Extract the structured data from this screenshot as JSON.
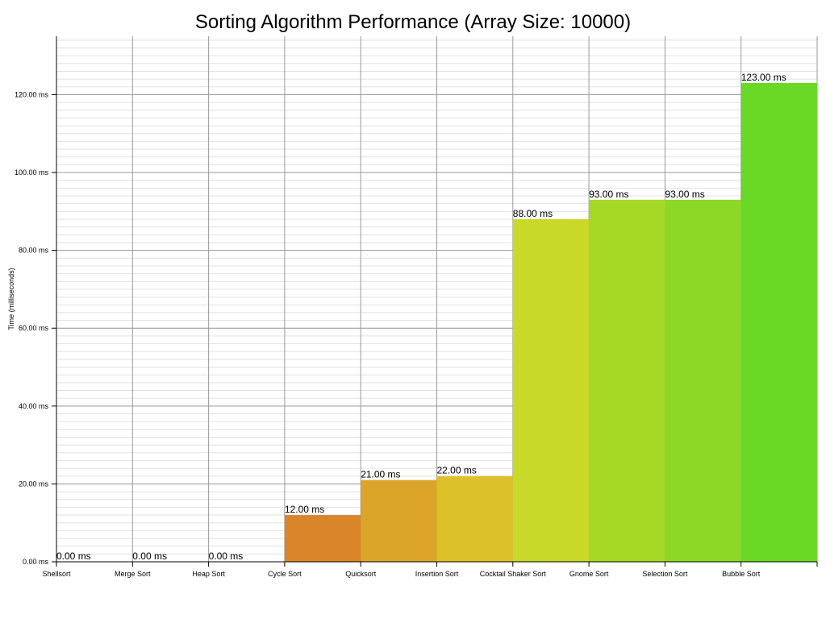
{
  "chart_data": {
    "type": "bar",
    "title": "Sorting Algorithm Performance (Array Size: 10000)",
    "xlabel": "",
    "ylabel": "Time (milliseconds)",
    "ylim": [
      0,
      135
    ],
    "y_ticks": [
      0,
      20,
      40,
      60,
      80,
      100,
      120
    ],
    "y_tick_labels": [
      "0.00 ms",
      "20.00 ms",
      "40.00 ms",
      "60.00 ms",
      "80.00 ms",
      "100.00 ms",
      "120.00 ms"
    ],
    "y_minor_step": 2,
    "grid": true,
    "legend": "none",
    "categories": [
      "Shellsort",
      "Merge Sort",
      "Heap Sort",
      "Cycle Sort",
      "Quicksort",
      "Insertion Sort",
      "Cocktail Shaker Sort",
      "Gnome Sort",
      "Selection Sort",
      "Bubble Sort"
    ],
    "values": [
      0,
      0,
      0,
      12,
      21,
      22,
      88,
      93,
      93,
      123
    ],
    "data_labels": [
      "0.00 ms",
      "0.00 ms",
      "0.00 ms",
      "12.00 ms",
      "21.00 ms",
      "22.00 ms",
      "88.00 ms",
      "93.00 ms",
      "93.00 ms",
      "123.00 ms"
    ],
    "colors": [
      "#d9452b",
      "#d9562b",
      "#d9682b",
      "#db852b",
      "#dba52a",
      "#dcc12a",
      "#c9d927",
      "#a6d926",
      "#8bd926",
      "#6ad926"
    ]
  }
}
